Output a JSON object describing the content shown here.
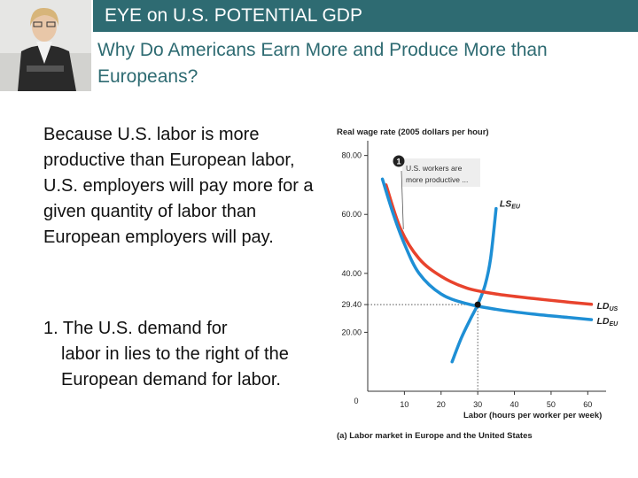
{
  "header": {
    "title": "EYE on U.S. POTENTIAL GDP",
    "subtitle": "Why Do Americans Earn More and Produce More than Europeans?"
  },
  "body": {
    "paragraph": "Because U.S. labor is more productive than European labor, U.S. employers will pay more for a given quantity of labor than European employers will pay.",
    "point_number": "1.",
    "point_first": "The U.S. demand for",
    "point_rest": "labor in lies to the right of the European demand for labor."
  },
  "colors": {
    "header_bg": "#2e6b72",
    "us_curve": "#e8432d",
    "eu_curve": "#1e8fd5",
    "supply": "#1e8fd5"
  },
  "chart_data": {
    "type": "line",
    "title": "Real wage rate (2005 dollars per hour)",
    "xlabel": "Labor (hours per worker per week)",
    "caption": "(a) Labor market in Europe and the United States",
    "xlim": [
      0,
      65
    ],
    "ylim": [
      0,
      85
    ],
    "x_ticks": [
      0,
      10,
      20,
      30,
      40,
      50,
      60
    ],
    "x_tick_labels": [
      "0",
      "10",
      "20",
      "30",
      "40",
      "50",
      "60"
    ],
    "y_ticks": [
      20,
      29.4,
      40,
      60,
      80
    ],
    "y_tick_labels": [
      "20.00",
      "29.40",
      "40.00",
      "60.00",
      "80.00"
    ],
    "equilibrium": {
      "x": 30,
      "y": 29.4
    },
    "series": [
      {
        "name": "LS_EU",
        "label_main": "LS",
        "label_sub": "EU",
        "role": "supply",
        "x": [
          23,
          25.5,
          28,
          30,
          32,
          33.5,
          35
        ],
        "y": [
          10,
          18,
          24.5,
          29.4,
          36,
          45,
          62
        ]
      },
      {
        "name": "LD_US",
        "label_main": "LD",
        "label_sub": "US",
        "role": "demand-us",
        "x": [
          5,
          9,
          14,
          20,
          27,
          35,
          45,
          55,
          61
        ],
        "y": [
          70,
          55,
          45,
          39,
          35,
          33,
          31.5,
          30.2,
          29.5
        ]
      },
      {
        "name": "LD_EU",
        "label_main": "LD",
        "label_sub": "EU",
        "role": "demand-eu",
        "x": [
          4,
          7,
          10,
          14,
          20,
          27,
          35,
          45,
          55,
          61
        ],
        "y": [
          72,
          60,
          50,
          40,
          33,
          29.7,
          27.8,
          26.2,
          25,
          24.3
        ]
      }
    ],
    "annotation": {
      "number": "1",
      "line1": "U.S. workers are",
      "line2": "more productive ..."
    }
  }
}
